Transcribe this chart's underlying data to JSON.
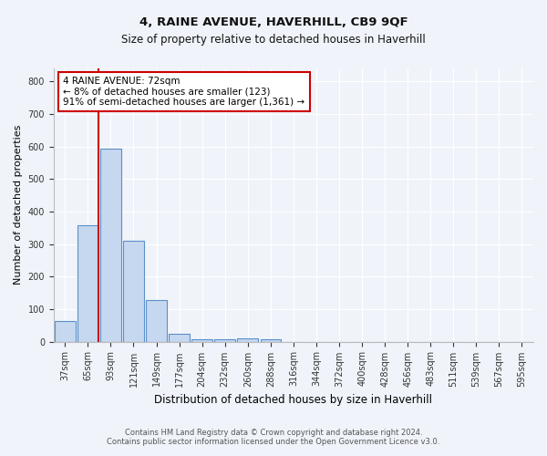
{
  "title1": "4, RAINE AVENUE, HAVERHILL, CB9 9QF",
  "title2": "Size of property relative to detached houses in Haverhill",
  "xlabel": "Distribution of detached houses by size in Haverhill",
  "ylabel": "Number of detached properties",
  "categories": [
    "37sqm",
    "65sqm",
    "93sqm",
    "121sqm",
    "149sqm",
    "177sqm",
    "204sqm",
    "232sqm",
    "260sqm",
    "288sqm",
    "316sqm",
    "344sqm",
    "372sqm",
    "400sqm",
    "428sqm",
    "456sqm",
    "483sqm",
    "511sqm",
    "539sqm",
    "567sqm",
    "595sqm"
  ],
  "values": [
    62,
    358,
    593,
    311,
    128,
    25,
    8,
    6,
    10,
    8,
    0,
    0,
    0,
    0,
    0,
    0,
    0,
    0,
    0,
    0,
    0
  ],
  "bar_color": "#c5d8f0",
  "bar_edge_color": "#5b8fc9",
  "property_line_x": 1.45,
  "annotation_text": "4 RAINE AVENUE: 72sqm\n← 8% of detached houses are smaller (123)\n91% of semi-detached houses are larger (1,361) →",
  "annotation_box_color": "#ffffff",
  "annotation_box_edge_color": "#cc0000",
  "property_line_color": "#cc0000",
  "ylim": [
    0,
    840
  ],
  "yticks": [
    0,
    100,
    200,
    300,
    400,
    500,
    600,
    700,
    800
  ],
  "footer_line1": "Contains HM Land Registry data © Crown copyright and database right 2024.",
  "footer_line2": "Contains public sector information licensed under the Open Government Licence v3.0.",
  "bg_color": "#f0f4fa",
  "plot_bg_color": "#f0f4fa"
}
